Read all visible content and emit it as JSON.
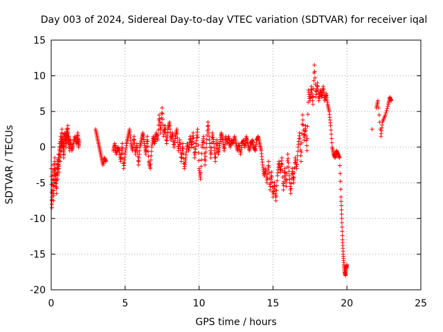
{
  "chart_data": {
    "type": "scatter",
    "title": "Day 003 of 2024, Sidereal Day-to-day VTEC variation (SDTVAR) for receiver iqal",
    "xlabel": "GPS time / hours",
    "ylabel": "SDTVAR / TECUs",
    "xlim": [
      0,
      25
    ],
    "ylim": [
      -20,
      15
    ],
    "xticks": [
      0,
      5,
      10,
      15,
      20,
      25
    ],
    "yticks": [
      -20,
      -15,
      -10,
      -5,
      0,
      5,
      10,
      15
    ],
    "grid": true,
    "marker": "+",
    "series": [
      {
        "name": "SDTVAR",
        "color": "#ff0000",
        "points": [
          [
            0.0,
            -3.0
          ],
          [
            0.04,
            -8.5
          ],
          [
            0.08,
            -6.0
          ],
          [
            0.12,
            -2.5
          ],
          [
            0.16,
            -7.5
          ],
          [
            0.2,
            -4.0
          ],
          [
            0.24,
            -1.5
          ],
          [
            0.28,
            -5.5
          ],
          [
            0.32,
            -3.0
          ],
          [
            0.36,
            -6.5
          ],
          [
            0.4,
            -2.0
          ],
          [
            0.44,
            -4.5
          ],
          [
            0.48,
            -1.0
          ],
          [
            0.52,
            -3.5
          ],
          [
            0.56,
            0.5
          ],
          [
            0.6,
            -2.0
          ],
          [
            0.64,
            1.5
          ],
          [
            0.68,
            -0.5
          ],
          [
            0.72,
            2.5
          ],
          [
            0.76,
            0.0
          ],
          [
            0.8,
            1.0
          ],
          [
            0.84,
            -1.5
          ],
          [
            0.88,
            0.5
          ],
          [
            0.92,
            2.0
          ],
          [
            0.96,
            1.5
          ],
          [
            1.0,
            0.0
          ],
          [
            1.04,
            2.5
          ],
          [
            1.08,
            1.0
          ],
          [
            1.12,
            3.0
          ],
          [
            1.16,
            0.5
          ],
          [
            1.2,
            1.5
          ],
          [
            1.25,
            -0.5
          ],
          [
            1.3,
            1.0
          ],
          [
            1.4,
            -0.5
          ],
          [
            1.5,
            0.5
          ],
          [
            1.6,
            1.5
          ],
          [
            1.7,
            0.5
          ],
          [
            1.8,
            2.0
          ],
          [
            1.85,
            0.0
          ],
          [
            1.9,
            1.0
          ],
          [
            3.0,
            2.5
          ],
          [
            3.1,
            1.5
          ],
          [
            3.2,
            0.5
          ],
          [
            3.3,
            -0.5
          ],
          [
            3.4,
            -1.5
          ],
          [
            3.5,
            -2.5
          ],
          [
            3.6,
            -1.5
          ],
          [
            3.7,
            -2.0
          ],
          [
            4.2,
            -0.5
          ],
          [
            4.3,
            0.5
          ],
          [
            4.4,
            -1.0
          ],
          [
            4.5,
            0.0
          ],
          [
            4.6,
            -0.5
          ],
          [
            4.7,
            -2.0
          ],
          [
            4.8,
            0.5
          ],
          [
            4.9,
            -3.0
          ],
          [
            5.0,
            -1.0
          ],
          [
            5.1,
            0.5
          ],
          [
            5.2,
            1.5
          ],
          [
            5.3,
            2.5
          ],
          [
            5.4,
            0.5
          ],
          [
            5.5,
            -0.5
          ],
          [
            5.6,
            1.5
          ],
          [
            5.7,
            -1.0
          ],
          [
            5.8,
            0.5
          ],
          [
            5.9,
            -2.5
          ],
          [
            6.0,
            0.0
          ],
          [
            6.1,
            1.0
          ],
          [
            6.2,
            2.0
          ],
          [
            6.3,
            0.5
          ],
          [
            6.4,
            -1.0
          ],
          [
            6.5,
            1.5
          ],
          [
            6.6,
            -2.0
          ],
          [
            6.7,
            -3.0
          ],
          [
            6.8,
            0.0
          ],
          [
            6.9,
            1.5
          ],
          [
            7.0,
            0.5
          ],
          [
            7.1,
            2.0
          ],
          [
            7.2,
            1.0
          ],
          [
            7.3,
            4.5
          ],
          [
            7.4,
            2.0
          ],
          [
            7.5,
            5.5
          ],
          [
            7.6,
            1.5
          ],
          [
            7.7,
            3.0
          ],
          [
            7.8,
            0.5
          ],
          [
            7.9,
            2.5
          ],
          [
            8.0,
            3.5
          ],
          [
            8.1,
            1.0
          ],
          [
            8.2,
            2.0
          ],
          [
            8.3,
            0.0
          ],
          [
            8.4,
            1.5
          ],
          [
            8.5,
            2.5
          ],
          [
            8.6,
            -0.5
          ],
          [
            8.7,
            1.0
          ],
          [
            8.8,
            -2.0
          ],
          [
            8.9,
            0.5
          ],
          [
            9.0,
            -3.0
          ],
          [
            9.1,
            -1.5
          ],
          [
            9.2,
            0.5
          ],
          [
            9.3,
            -0.5
          ],
          [
            9.4,
            1.5
          ],
          [
            9.5,
            0.0
          ],
          [
            9.6,
            2.0
          ],
          [
            9.7,
            -1.5
          ],
          [
            9.8,
            0.5
          ],
          [
            9.9,
            2.5
          ],
          [
            10.0,
            -3.0
          ],
          [
            10.1,
            -4.5
          ],
          [
            10.2,
            0.0
          ],
          [
            10.3,
            1.5
          ],
          [
            10.4,
            -2.5
          ],
          [
            10.5,
            0.5
          ],
          [
            10.6,
            3.5
          ],
          [
            10.7,
            1.0
          ],
          [
            10.8,
            -1.5
          ],
          [
            10.9,
            2.0
          ],
          [
            11.0,
            0.5
          ],
          [
            11.1,
            -2.0
          ],
          [
            11.2,
            1.0
          ],
          [
            11.3,
            -1.0
          ],
          [
            11.4,
            0.5
          ],
          [
            11.5,
            2.0
          ],
          [
            11.6,
            1.0
          ],
          [
            11.7,
            -0.5
          ],
          [
            11.8,
            1.5
          ],
          [
            11.9,
            0.5
          ],
          [
            12.0,
            1.5
          ],
          [
            12.1,
            0.0
          ],
          [
            12.2,
            1.0
          ],
          [
            12.3,
            0.5
          ],
          [
            12.4,
            1.5
          ],
          [
            12.5,
            0.5
          ],
          [
            12.6,
            -0.5
          ],
          [
            12.7,
            0.5
          ],
          [
            12.8,
            -1.0
          ],
          [
            12.9,
            0.5
          ],
          [
            13.0,
            1.0
          ],
          [
            13.1,
            0.0
          ],
          [
            13.2,
            1.5
          ],
          [
            13.3,
            0.5
          ],
          [
            13.4,
            -0.5
          ],
          [
            13.5,
            0.5
          ],
          [
            13.6,
            1.0
          ],
          [
            13.7,
            0.0
          ],
          [
            13.8,
            -0.5
          ],
          [
            13.9,
            1.0
          ],
          [
            14.0,
            1.5
          ],
          [
            14.1,
            0.5
          ],
          [
            14.2,
            -0.5
          ],
          [
            14.3,
            -2.5
          ],
          [
            14.4,
            -4.0
          ],
          [
            14.5,
            -3.0
          ],
          [
            14.6,
            -5.0
          ],
          [
            14.7,
            -2.0
          ],
          [
            14.8,
            -6.0
          ],
          [
            14.9,
            -3.5
          ],
          [
            15.0,
            -7.0
          ],
          [
            15.1,
            -5.0
          ],
          [
            15.2,
            -7.5
          ],
          [
            15.3,
            -4.0
          ],
          [
            15.4,
            -2.0
          ],
          [
            15.5,
            -3.5
          ],
          [
            15.6,
            -1.5
          ],
          [
            15.7,
            -6.0
          ],
          [
            15.8,
            -3.0
          ],
          [
            15.9,
            -5.5
          ],
          [
            16.0,
            -1.0
          ],
          [
            16.1,
            -4.0
          ],
          [
            16.2,
            -6.5
          ],
          [
            16.3,
            -3.0
          ],
          [
            16.4,
            -5.0
          ],
          [
            16.5,
            -1.5
          ],
          [
            16.6,
            -3.0
          ],
          [
            16.7,
            0.0
          ],
          [
            16.8,
            2.0
          ],
          [
            16.9,
            -2.0
          ],
          [
            17.0,
            4.5
          ],
          [
            17.1,
            1.0
          ],
          [
            17.2,
            3.0
          ],
          [
            17.3,
            -0.5
          ],
          [
            17.4,
            8.0
          ],
          [
            17.5,
            6.5
          ],
          [
            17.6,
            8.5
          ],
          [
            17.7,
            6.0
          ],
          [
            17.8,
            11.5
          ],
          [
            17.9,
            7.0
          ],
          [
            18.0,
            9.0
          ],
          [
            18.1,
            6.5
          ],
          [
            18.2,
            8.0
          ],
          [
            18.3,
            7.0
          ],
          [
            18.4,
            8.5
          ],
          [
            18.5,
            6.5
          ],
          [
            18.6,
            7.5
          ],
          [
            18.7,
            6.0
          ],
          [
            18.8,
            5.0
          ],
          [
            18.9,
            3.0
          ],
          [
            19.0,
            0.0
          ],
          [
            19.1,
            -1.0
          ],
          [
            19.2,
            -1.5
          ],
          [
            19.3,
            -0.5
          ],
          [
            19.4,
            -1.0
          ],
          [
            19.5,
            -1.5
          ],
          [
            19.6,
            -7.0
          ],
          [
            19.65,
            -10.0
          ],
          [
            19.7,
            -13.0
          ],
          [
            19.75,
            -15.0
          ],
          [
            19.8,
            -16.5
          ],
          [
            19.85,
            -17.5
          ],
          [
            19.9,
            -18.0
          ],
          [
            19.95,
            -17.0
          ],
          [
            20.0,
            -16.5
          ],
          [
            21.7,
            2.5
          ],
          [
            22.0,
            5.5
          ],
          [
            22.1,
            6.5
          ],
          [
            22.3,
            1.5
          ],
          [
            22.4,
            3.5
          ],
          [
            22.6,
            4.5
          ],
          [
            22.8,
            6.0
          ],
          [
            22.9,
            7.0
          ],
          [
            23.0,
            6.5
          ]
        ]
      }
    ]
  }
}
